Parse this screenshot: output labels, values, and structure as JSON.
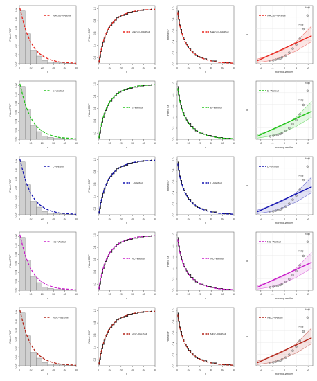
{
  "figure": {
    "background": "#ffffff"
  },
  "rows": [
    {
      "model": "NACos–Weibull",
      "color": "#e8261e",
      "qq_label": "–Weibull",
      "qq_label_full": "NACos–Weibull"
    },
    {
      "model": "E–Weibull",
      "color": "#22c31a",
      "qq_label": "–Weibull",
      "qq_label_full": "E–Weibull"
    },
    {
      "model": "L–Weibull",
      "color": "#1212b0",
      "qq_label": "–Weibull",
      "qq_label_full": "L–Weibull"
    },
    {
      "model": "NC–Weibull",
      "color": "#c81ac8",
      "qq_label": "–Weibull",
      "qq_label_full": "NC–Weibull"
    },
    {
      "model": "NEC–Weibull",
      "color": "#b22418",
      "qq_label": "–Weibull",
      "qq_label_full": "NEC–Weibull"
    }
  ],
  "panels": {
    "pdf": {
      "ylabel": "Fitted PDF",
      "xlabel": "x",
      "xticks": [
        "0",
        "10",
        "20",
        "30",
        "40",
        "50"
      ],
      "yticks": [
        "0.00",
        "0.02",
        "0.04",
        "0.06",
        "0.08",
        "0.10",
        "0.12"
      ]
    },
    "cdf": {
      "ylabel": "Fitted CDF",
      "xlabel": "x",
      "xticks": [
        "0",
        "10",
        "20",
        "30",
        "40",
        "50"
      ],
      "yticks": [
        "0.2",
        "0.4",
        "0.6",
        "0.8",
        "1.0"
      ]
    },
    "sf": {
      "ylabel": "Fitted SF",
      "xlabel": "x",
      "xticks": [
        "0",
        "10",
        "20",
        "30",
        "40",
        "50"
      ],
      "yticks": [
        "0.0",
        "0.2",
        "0.4",
        "0.6",
        "0.8",
        "1.0"
      ]
    },
    "qq": {
      "ylabel": "x",
      "xlabel": "norm quantiles",
      "xticks": [
        "-2",
        "-1",
        "0",
        "1",
        "2"
      ],
      "annot_top": "f4dgi",
      "annot_mid": "f4dgi"
    }
  },
  "chart_data": [
    {
      "type": "bar",
      "panel": "pdf",
      "xlabel": "x",
      "ylabel": "Fitted PDF",
      "xlim": [
        0,
        50
      ],
      "ylim": [
        0,
        0.13
      ],
      "histogram_bins": [
        [
          0,
          5
        ],
        [
          5,
          10
        ],
        [
          10,
          15
        ],
        [
          15,
          20
        ],
        [
          20,
          25
        ],
        [
          25,
          30
        ],
        [
          30,
          35
        ],
        [
          35,
          40
        ],
        [
          40,
          45
        ],
        [
          45,
          50
        ]
      ],
      "histogram_density": [
        0.118,
        0.067,
        0.03,
        0.017,
        0.007,
        0.004,
        0.002,
        0.002,
        0.001,
        0.001
      ],
      "fitted_curve": {
        "x": [
          0.5,
          2,
          4,
          6,
          8,
          10,
          14,
          18,
          22,
          26,
          30,
          35,
          40,
          45,
          50
        ],
        "y": [
          0.124,
          0.108,
          0.088,
          0.072,
          0.059,
          0.048,
          0.032,
          0.022,
          0.015,
          0.01,
          0.007,
          0.004,
          0.003,
          0.002,
          0.001
        ]
      }
    },
    {
      "type": "line",
      "panel": "cdf",
      "xlabel": "x",
      "ylabel": "Fitted CDF",
      "xlim": [
        0,
        50
      ],
      "ylim": [
        0.1,
        1.05
      ],
      "empirical": {
        "x": [
          0.5,
          1,
          2,
          3,
          4,
          5,
          6,
          7,
          8,
          9,
          10,
          12,
          14,
          16,
          18,
          20,
          23,
          26,
          30,
          35,
          40,
          47
        ],
        "y": [
          0.12,
          0.2,
          0.3,
          0.38,
          0.45,
          0.52,
          0.57,
          0.61,
          0.65,
          0.69,
          0.72,
          0.77,
          0.81,
          0.85,
          0.87,
          0.89,
          0.91,
          0.93,
          0.95,
          0.97,
          0.98,
          0.99
        ]
      },
      "fitted_curve": {
        "x": [
          0.5,
          2,
          4,
          6,
          8,
          10,
          14,
          18,
          22,
          26,
          30,
          35,
          40,
          45,
          50
        ],
        "y": [
          0.12,
          0.29,
          0.44,
          0.56,
          0.64,
          0.71,
          0.8,
          0.86,
          0.9,
          0.93,
          0.95,
          0.97,
          0.98,
          0.985,
          0.99
        ]
      },
      "points": {
        "x": [
          30,
          35,
          40,
          47
        ],
        "y": [
          0.95,
          0.97,
          0.98,
          0.99
        ]
      }
    },
    {
      "type": "line",
      "panel": "sf",
      "xlabel": "x",
      "ylabel": "Fitted SF",
      "xlim": [
        0,
        50
      ],
      "ylim": [
        0,
        1.05
      ],
      "empirical": {
        "x": [
          0.5,
          1,
          2,
          3,
          4,
          5,
          6,
          7,
          8,
          9,
          10,
          12,
          14,
          16,
          18,
          20,
          23,
          26,
          30,
          35,
          40,
          47
        ],
        "y": [
          0.95,
          0.8,
          0.7,
          0.62,
          0.55,
          0.48,
          0.43,
          0.39,
          0.35,
          0.31,
          0.28,
          0.23,
          0.19,
          0.15,
          0.13,
          0.11,
          0.09,
          0.07,
          0.05,
          0.03,
          0.02,
          0.01
        ]
      },
      "fitted_curve": {
        "x": [
          0.5,
          2,
          4,
          6,
          8,
          10,
          14,
          18,
          22,
          26,
          30,
          35,
          40,
          45,
          50
        ],
        "y": [
          0.92,
          0.71,
          0.56,
          0.44,
          0.36,
          0.29,
          0.2,
          0.14,
          0.1,
          0.07,
          0.05,
          0.03,
          0.02,
          0.015,
          0.01
        ]
      }
    },
    {
      "type": "scatter",
      "panel": "qq",
      "xlabel": "norm quantiles",
      "ylabel": "x",
      "xlim": [
        -2.4,
        2.4
      ],
      "ylim": [
        0,
        1
      ],
      "points": {
        "x": [
          -1.2,
          -0.95,
          -0.75,
          -0.55,
          -0.35,
          -0.2,
          0.1,
          0.4,
          0.7,
          1.0,
          1.3,
          1.6,
          1.95
        ],
        "y": [
          0.05,
          0.06,
          0.07,
          0.08,
          0.09,
          0.11,
          0.14,
          0.19,
          0.26,
          0.33,
          0.43,
          0.59,
          0.83
        ]
      },
      "fit_line": {
        "x": [
          -2.3,
          2.3
        ],
        "y": [
          0.05,
          0.48
        ]
      },
      "upper_band": {
        "x": [
          -2.3,
          -1,
          0,
          1,
          2.3
        ],
        "y": [
          0.08,
          0.16,
          0.25,
          0.38,
          0.65
        ]
      },
      "lower_band": {
        "x": [
          -2.3,
          -1,
          0,
          1,
          2.3
        ],
        "y": [
          0.02,
          0.06,
          0.13,
          0.22,
          0.38
        ]
      }
    }
  ]
}
